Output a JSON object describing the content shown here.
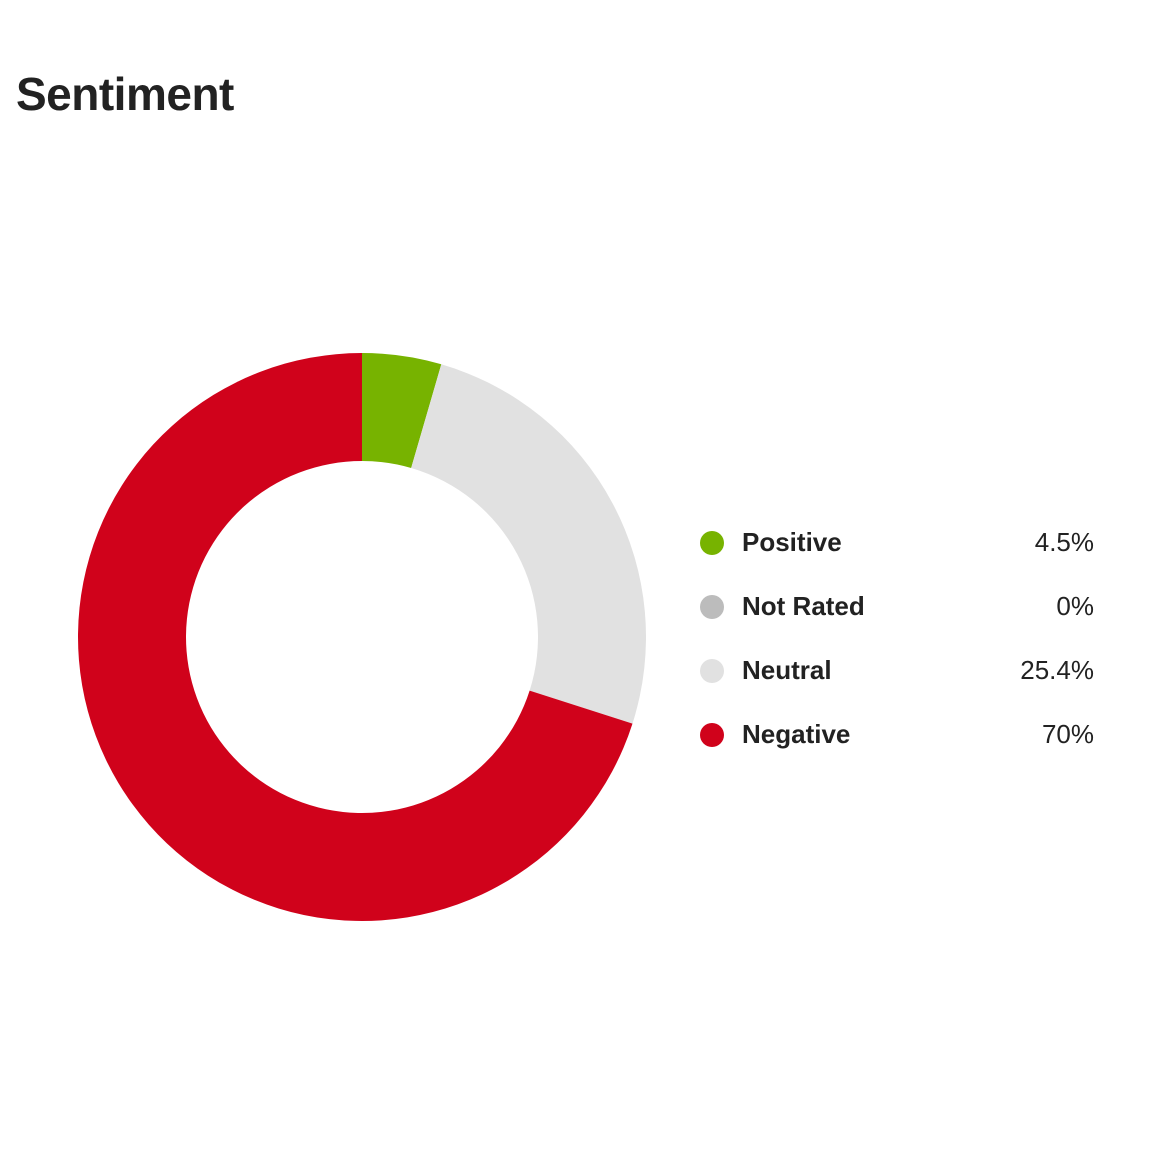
{
  "title": "Sentiment",
  "chart_data": {
    "type": "pie",
    "variant": "donut",
    "title": "Sentiment",
    "legend_position": "right",
    "slices": [
      {
        "label": "Positive",
        "value": 4.5,
        "display": "4.5%",
        "color": "#77b300"
      },
      {
        "label": "Not Rated",
        "value": 0,
        "display": "0%",
        "color": "#bcbcbc"
      },
      {
        "label": "Neutral",
        "value": 25.4,
        "display": "25.4%",
        "color": "#e1e1e1"
      },
      {
        "label": "Negative",
        "value": 70,
        "display": "70%",
        "color": "#d0021b"
      }
    ]
  }
}
